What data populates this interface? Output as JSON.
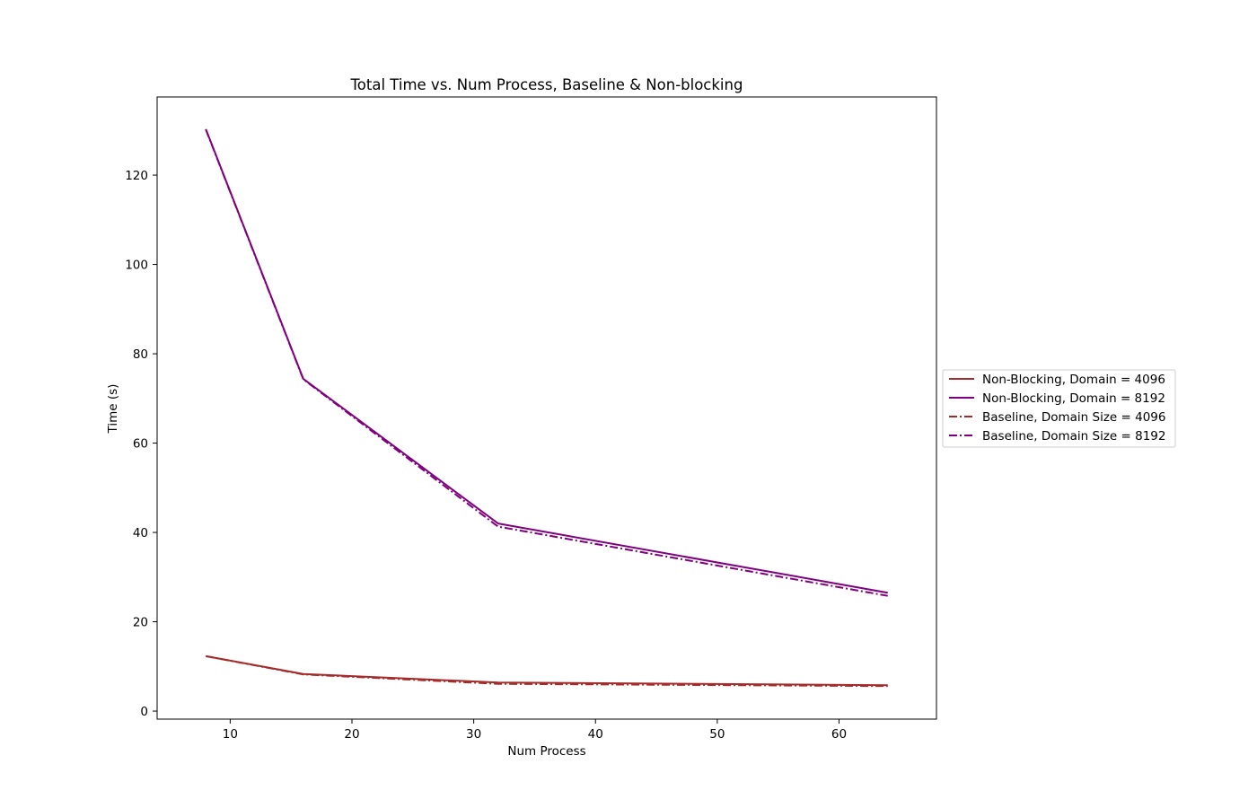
{
  "chart_data": {
    "type": "line",
    "title": "Total Time vs. Num Process, Baseline & Non-blocking",
    "xlabel": "Num Process",
    "ylabel": "Time (s)",
    "xlim": [
      4,
      68
    ],
    "ylim": [
      -1.8,
      137.5
    ],
    "xticks": [
      10,
      20,
      30,
      40,
      50,
      60
    ],
    "yticks": [
      0,
      20,
      40,
      60,
      80,
      100,
      120
    ],
    "grid": false,
    "legend_position": "outside-right",
    "x": [
      8,
      16,
      32,
      64
    ],
    "series": [
      {
        "name": "Non-Blocking, Domain = 4096",
        "values": [
          12.3,
          8.3,
          6.4,
          5.8
        ],
        "color": "#a52a2a",
        "style": "solid"
      },
      {
        "name": "Non-Blocking, Domain = 8192",
        "values": [
          130.3,
          74.4,
          42.0,
          26.5
        ],
        "color": "#800080",
        "style": "solid"
      },
      {
        "name": "Baseline, Domain Size = 4096",
        "values": [
          12.3,
          8.2,
          6.1,
          5.6
        ],
        "color": "#a52a2a",
        "style": "dashdot"
      },
      {
        "name": "Baseline, Domain Size = 8192",
        "values": [
          130.2,
          74.3,
          41.3,
          25.8
        ],
        "color": "#800080",
        "style": "dashdot"
      }
    ]
  }
}
